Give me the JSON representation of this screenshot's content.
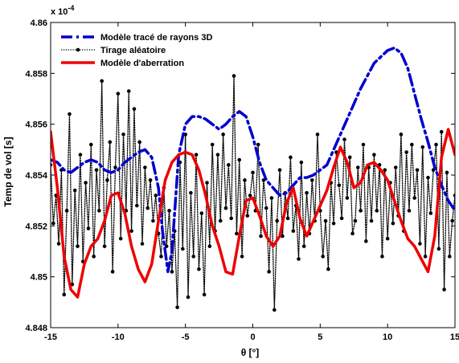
{
  "chart_data": {
    "type": "line",
    "xlabel": "θ [°]",
    "ylabel": "Temp de vol [s]",
    "multiplier_label": "x 10",
    "multiplier_exponent": "-4",
    "xlim": [
      -15,
      15
    ],
    "ylim": [
      4.848,
      4.86
    ],
    "xticks": [
      -15,
      -10,
      -5,
      0,
      5,
      10,
      15
    ],
    "xtick_labels": [
      "-15",
      "-10",
      "-5",
      "0",
      "5",
      "10",
      "15"
    ],
    "yticks": [
      4.848,
      4.85,
      4.852,
      4.854,
      4.856,
      4.858,
      4.86
    ],
    "ytick_labels": [
      "4.848",
      "4.85",
      "4.852",
      "4.854",
      "4.856",
      "4.858",
      "4.86"
    ],
    "grid": false,
    "legend_position": "top-left",
    "series": [
      {
        "name": "Modèle tracé de rayons 3D",
        "color": "#0000cc",
        "style": "dashdot",
        "x": [
          -15,
          -14.5,
          -14,
          -13.5,
          -13,
          -12.5,
          -12,
          -11.5,
          -11,
          -10.5,
          -10,
          -9.5,
          -9,
          -8.5,
          -8,
          -7.5,
          -7,
          -6.7,
          -6.3,
          -6,
          -5.5,
          -5,
          -4.5,
          -4,
          -3.5,
          -3,
          -2.5,
          -2,
          -1.5,
          -1,
          -0.5,
          0,
          0.5,
          1,
          1.5,
          2,
          2.5,
          3,
          3.5,
          4,
          4.5,
          5,
          5.5,
          6,
          7,
          8,
          9,
          10,
          10.5,
          11,
          11.5,
          12,
          12.5,
          13,
          13.5,
          14,
          14.5,
          15
        ],
        "values": [
          4.8546,
          4.8545,
          4.8542,
          4.8541,
          4.8543,
          4.8545,
          4.8546,
          4.8545,
          4.8542,
          4.8541,
          4.8542,
          4.8545,
          4.8547,
          4.8549,
          4.855,
          4.8547,
          4.8535,
          4.8518,
          4.8502,
          4.851,
          4.8548,
          4.856,
          4.8563,
          4.8563,
          4.8562,
          4.856,
          4.8558,
          4.856,
          4.8563,
          4.8565,
          4.8563,
          4.8555,
          4.8545,
          4.8538,
          4.8535,
          4.8532,
          4.8533,
          4.8536,
          4.8539,
          4.8539,
          4.854,
          4.8542,
          4.8544,
          4.855,
          4.8562,
          4.8574,
          4.8584,
          4.8589,
          4.859,
          4.8588,
          4.8582,
          4.8572,
          4.8562,
          4.8553,
          4.8543,
          4.8536,
          4.853,
          4.8526
        ]
      },
      {
        "name": "Tirage aléatoire",
        "color": "#000000",
        "style": "dotted-markers",
        "x": [
          -15,
          -14.8,
          -14.6,
          -14.4,
          -14.2,
          -14,
          -13.8,
          -13.6,
          -13.4,
          -13.2,
          -13,
          -12.8,
          -12.6,
          -12.4,
          -12.2,
          -12,
          -11.8,
          -11.6,
          -11.4,
          -11.2,
          -11,
          -10.8,
          -10.6,
          -10.4,
          -10.2,
          -10,
          -9.8,
          -9.6,
          -9.4,
          -9.2,
          -9,
          -8.8,
          -8.6,
          -8.4,
          -8.2,
          -8,
          -7.8,
          -7.6,
          -7.4,
          -7.2,
          -7,
          -6.8,
          -6.6,
          -6.4,
          -6.2,
          -6,
          -5.8,
          -5.6,
          -5.4,
          -5.2,
          -5,
          -4.8,
          -4.6,
          -4.4,
          -4.2,
          -4,
          -3.8,
          -3.6,
          -3.4,
          -3.2,
          -3,
          -2.8,
          -2.6,
          -2.4,
          -2.2,
          -2,
          -1.8,
          -1.6,
          -1.4,
          -1.2,
          -1,
          -0.8,
          -0.6,
          -0.4,
          -0.2,
          0,
          0.2,
          0.4,
          0.6,
          0.8,
          1,
          1.2,
          1.4,
          1.6,
          1.8,
          2,
          2.2,
          2.4,
          2.6,
          2.8,
          3,
          3.2,
          3.4,
          3.6,
          3.8,
          4,
          4.2,
          4.4,
          4.6,
          4.8,
          5,
          5.2,
          5.4,
          5.6,
          5.8,
          6,
          6.2,
          6.4,
          6.6,
          6.8,
          7,
          7.2,
          7.4,
          7.6,
          7.8,
          8,
          8.2,
          8.4,
          8.6,
          8.8,
          9,
          9.2,
          9.4,
          9.6,
          9.8,
          10,
          10.2,
          10.4,
          10.6,
          10.8,
          11,
          11.2,
          11.4,
          11.6,
          11.8,
          12,
          12.2,
          12.4,
          12.6,
          12.8,
          13,
          13.2,
          13.4,
          13.6,
          13.8,
          14,
          14.2,
          14.4,
          14.6,
          14.8,
          15
        ],
        "values": [
          4.8544,
          4.8521,
          4.8532,
          4.8513,
          4.8542,
          4.8493,
          4.8526,
          4.8564,
          4.8497,
          4.8534,
          4.8512,
          4.8548,
          4.8506,
          4.8537,
          4.8519,
          4.8552,
          4.8508,
          4.8542,
          4.8526,
          4.8577,
          4.8512,
          4.8538,
          4.8553,
          4.8502,
          4.8543,
          4.8572,
          4.8515,
          4.8556,
          4.8526,
          4.8573,
          4.8518,
          4.8566,
          4.8528,
          4.8553,
          4.8513,
          4.8543,
          4.8527,
          4.8538,
          4.8522,
          4.8532,
          4.8517,
          4.8508,
          4.8535,
          4.8512,
          4.8526,
          4.8502,
          4.8518,
          4.8488,
          4.8545,
          4.8511,
          4.8556,
          4.8492,
          4.8533,
          4.8508,
          4.8548,
          4.8503,
          4.8525,
          4.8493,
          4.8537,
          4.8512,
          4.8552,
          4.8518,
          4.8548,
          4.8522,
          4.8556,
          4.8527,
          4.8544,
          4.8523,
          4.8579,
          4.8517,
          4.8546,
          4.8508,
          4.8538,
          4.8524,
          4.8532,
          4.8541,
          4.8526,
          4.8552,
          4.8516,
          4.8538,
          4.8527,
          4.8502,
          4.8531,
          4.8487,
          4.8522,
          4.8542,
          4.8516,
          4.8533,
          4.8523,
          4.8547,
          4.8518,
          4.8528,
          4.8507,
          4.8545,
          4.8512,
          4.8533,
          4.8517,
          4.8538,
          4.8522,
          4.8556,
          4.8526,
          4.8508,
          4.8522,
          4.8503,
          4.8537,
          4.8521,
          4.8549,
          4.8536,
          4.8523,
          4.8554,
          4.8531,
          4.8547,
          4.8517,
          4.8522,
          4.8543,
          4.8526,
          4.8552,
          4.8514,
          4.8543,
          4.8522,
          4.8548,
          4.8526,
          4.8544,
          4.8508,
          4.8542,
          4.8515,
          4.8537,
          4.8521,
          4.8543,
          4.8524,
          4.8556,
          4.8518,
          4.8549,
          4.8526,
          4.8552,
          4.8531,
          4.8542,
          4.8513,
          4.8551,
          4.8508,
          4.8539,
          4.8525,
          4.8542,
          4.8552,
          4.8511,
          4.8557,
          4.8495,
          4.8541,
          4.8508,
          4.8522,
          4.8532
        ]
      },
      {
        "name": "Modèle d'aberration",
        "color": "#ee0000",
        "style": "solid",
        "x": [
          -15,
          -14.5,
          -14,
          -13.5,
          -13,
          -12.5,
          -12,
          -11.5,
          -11,
          -10.5,
          -10,
          -9.5,
          -9,
          -8.5,
          -8,
          -7.5,
          -7,
          -6.5,
          -6,
          -5.5,
          -5,
          -4.5,
          -4,
          -3.5,
          -3,
          -2.5,
          -2,
          -1.5,
          -1,
          -0.5,
          0,
          0.5,
          1,
          1.5,
          2,
          2.5,
          3,
          3.5,
          4,
          4.5,
          5,
          5.5,
          6,
          6.5,
          7,
          7.5,
          8,
          8.5,
          9,
          9.5,
          10,
          10.5,
          11,
          11.5,
          12,
          12.5,
          13,
          13.5,
          14,
          14.5,
          15
        ],
        "values": [
          4.8557,
          4.8535,
          4.8508,
          4.8495,
          4.8492,
          4.8505,
          4.8512,
          4.8515,
          4.8522,
          4.8532,
          4.8533,
          4.8525,
          4.8512,
          4.8503,
          4.8498,
          4.8505,
          4.8522,
          4.8538,
          4.8545,
          4.8548,
          4.8549,
          4.8548,
          4.8542,
          4.8532,
          4.852,
          4.8512,
          4.8502,
          4.8501,
          4.8516,
          4.853,
          4.8531,
          4.8524,
          4.8516,
          4.8512,
          4.8516,
          4.8529,
          4.8535,
          4.8523,
          4.8516,
          4.8522,
          4.8528,
          4.8534,
          4.8543,
          4.8551,
          4.8545,
          4.8535,
          4.8537,
          4.8544,
          4.8545,
          4.8542,
          4.8538,
          4.853,
          4.8522,
          4.8515,
          4.8512,
          4.8507,
          4.8502,
          4.8516,
          4.8547,
          4.8558,
          4.8548
        ]
      }
    ]
  }
}
